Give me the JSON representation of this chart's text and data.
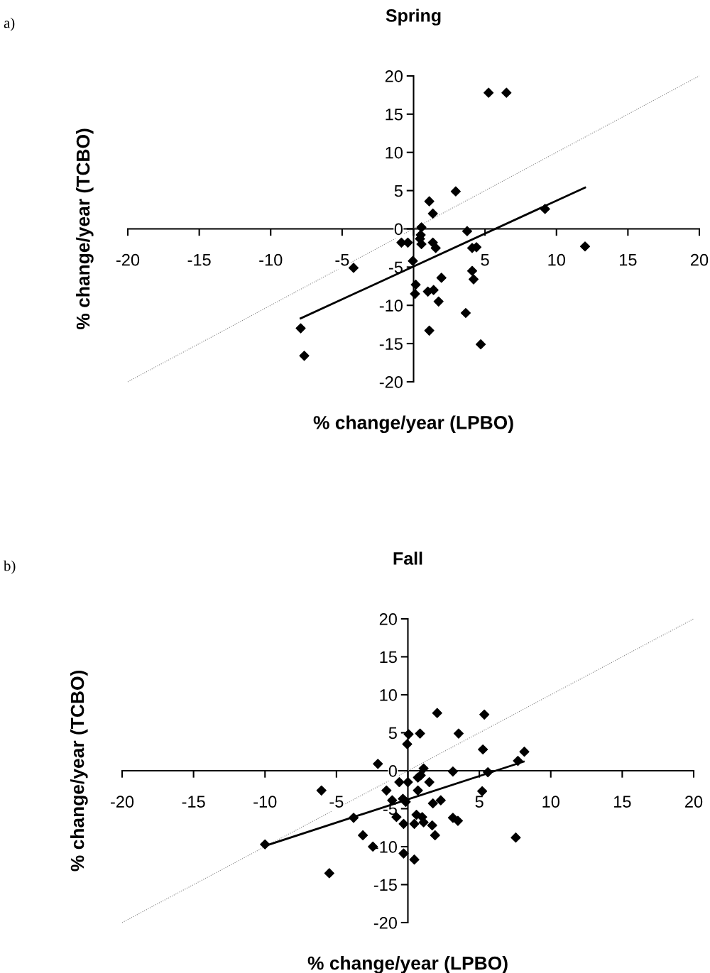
{
  "chart_data": [
    {
      "type": "scatter",
      "title": "Spring",
      "xlabel": "% change/year (LPBO)",
      "ylabel": "% change/year (TCBO)",
      "annotations": [
        "a)"
      ],
      "xlim": [
        -20,
        20
      ],
      "ylim": [
        -20,
        20
      ],
      "xticks": [
        -20,
        -15,
        -10,
        -5,
        {
          "value": 0,
          "label": null
        },
        5,
        10,
        15,
        20
      ],
      "yticks": [
        -20,
        -15,
        -10,
        -5,
        0,
        5,
        10,
        15,
        20
      ],
      "series": [
        {
          "color": "#000000",
          "marker": "diamond",
          "x": [
            5.25,
            6.5,
            2.95,
            1.1,
            1.35,
            0.55,
            3.75,
            9.2,
            -0.85,
            -0.4,
            0.5,
            0.45,
            0.55,
            1.35,
            1.55,
            4.1,
            4.4,
            -0.05,
            -4.2,
            4.1,
            4.2,
            1.95,
            0.15,
            0.1,
            1.0,
            1.4,
            1.75,
            3.65,
            1.1,
            4.7,
            -7.9,
            -7.65,
            12.0
          ],
          "values": [
            17.8,
            17.8,
            4.9,
            3.6,
            2.0,
            0.2,
            -0.3,
            2.6,
            -1.8,
            -1.8,
            -0.8,
            -1.3,
            -2.0,
            -1.8,
            -2.5,
            -2.5,
            -2.4,
            -4.2,
            -5.1,
            -5.5,
            -6.6,
            -6.4,
            -7.3,
            -8.5,
            -8.2,
            -8.0,
            -9.5,
            -11.0,
            -13.3,
            -15.1,
            -13.0,
            -16.6,
            -2.3
          ]
        },
        {
          "type": "line",
          "color": "#000000",
          "marker": "none",
          "line_style": "solid",
          "x": [
            -7.9,
            12.0
          ],
          "values": [
            -11.7,
            5.4
          ]
        },
        {
          "type": "line",
          "color": "#808080",
          "marker": "none",
          "line_style": "dotted",
          "x": [
            -20,
            20
          ],
          "values": [
            -20,
            20
          ]
        }
      ]
    },
    {
      "type": "scatter",
      "title": "Fall",
      "xlabel": "% change/year (LPBO)",
      "ylabel": "% change/year (TCBO)",
      "annotations": [
        "b)"
      ],
      "xlim": [
        -20,
        20
      ],
      "ylim": [
        -20,
        20
      ],
      "xticks": [
        -20,
        -15,
        -10,
        -5,
        {
          "value": 0,
          "label": null
        },
        5,
        10,
        15,
        20
      ],
      "yticks": [
        -20,
        -15,
        -10,
        -5,
        0,
        5,
        10,
        15,
        20
      ],
      "series": [
        {
          "color": "#000000",
          "marker": "diamond",
          "x": [
            2.05,
            5.35,
            0.05,
            0.85,
            3.55,
            -0.05,
            5.25,
            8.15,
            7.7,
            -2.1,
            1.1,
            3.15,
            5.6,
            0.9,
            0.7,
            -0.6,
            0.0,
            1.5,
            -6.05,
            -1.5,
            0.7,
            5.2,
            -1.1,
            -0.35,
            -0.15,
            1.75,
            2.3,
            -0.8,
            -3.8,
            0.6,
            1.0,
            1.1,
            0.45,
            -0.3,
            1.7,
            3.15,
            3.5,
            1.9,
            -3.15,
            7.55,
            -2.45,
            -10.0,
            -0.3,
            0.45,
            -5.5
          ],
          "values": [
            7.6,
            7.4,
            4.8,
            4.9,
            4.9,
            3.5,
            2.8,
            2.5,
            1.3,
            0.9,
            0.3,
            -0.1,
            -0.2,
            -0.6,
            -0.9,
            -1.5,
            -1.5,
            -1.5,
            -2.6,
            -2.6,
            -2.6,
            -2.7,
            -3.9,
            -3.7,
            -4.1,
            -4.3,
            -3.9,
            -6.1,
            -6.2,
            -5.8,
            -6.1,
            -6.8,
            -7.0,
            -7.0,
            -7.2,
            -6.2,
            -6.6,
            -8.5,
            -8.5,
            -8.8,
            -10.0,
            -9.7,
            -10.9,
            -11.7,
            -13.5
          ]
        },
        {
          "type": "line",
          "color": "#000000",
          "marker": "none",
          "line_style": "solid",
          "x": [
            -10.0,
            8.1
          ],
          "values": [
            -9.9,
            1.2
          ]
        },
        {
          "type": "line",
          "color": "#808080",
          "marker": "none",
          "line_style": "dotted",
          "x": [
            -20,
            20
          ],
          "values": [
            -20,
            20
          ]
        }
      ]
    }
  ]
}
